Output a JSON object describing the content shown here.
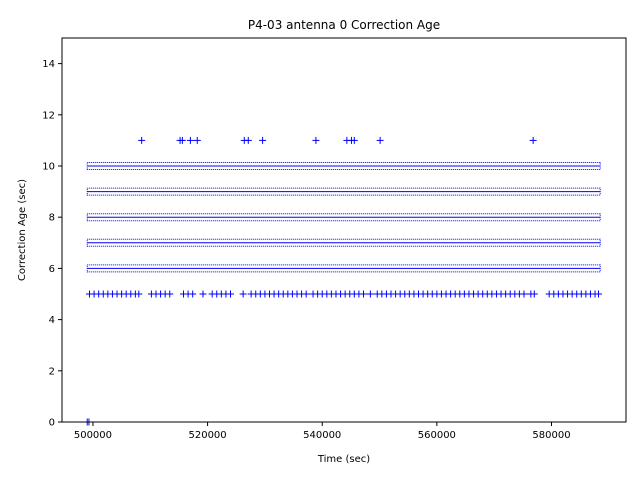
{
  "chart_data": {
    "type": "scatter",
    "title": "P4-03 antenna 0 Correction Age",
    "xlabel": "Time (sec)",
    "ylabel": "Correction Age (sec)",
    "xlim": [
      494600,
      593000
    ],
    "ylim": [
      0,
      15
    ],
    "xticks": [
      500000,
      520000,
      540000,
      560000,
      580000
    ],
    "xtick_labels": [
      "500000",
      "520000",
      "540000",
      "560000",
      "580000"
    ],
    "yticks": [
      0,
      2,
      4,
      6,
      8,
      10,
      12,
      14
    ],
    "ytick_labels": [
      "0",
      "2",
      "4",
      "6",
      "8",
      "10",
      "12",
      "14"
    ],
    "grid": false,
    "marker": "+",
    "color": "#0000ff",
    "bands": [
      {
        "y": 6,
        "x_range": [
          499000,
          588500
        ]
      },
      {
        "y": 7,
        "x_range": [
          499000,
          588500
        ]
      },
      {
        "y": 8,
        "x_range": [
          499000,
          588500
        ]
      },
      {
        "y": 9,
        "x_range": [
          499000,
          588500
        ]
      },
      {
        "y": 10,
        "x_range": [
          499000,
          588500
        ]
      }
    ],
    "series": [
      {
        "values": [
          {
            "x": 499000,
            "y": 0
          },
          {
            "x": 499300,
            "y": 0
          },
          {
            "x": 508500,
            "y": 11
          },
          {
            "x": 515200,
            "y": 11
          },
          {
            "x": 515600,
            "y": 11
          },
          {
            "x": 517000,
            "y": 11
          },
          {
            "x": 518200,
            "y": 11
          },
          {
            "x": 526400,
            "y": 11
          },
          {
            "x": 527100,
            "y": 11
          },
          {
            "x": 529600,
            "y": 11
          },
          {
            "x": 538900,
            "y": 11
          },
          {
            "x": 544300,
            "y": 11
          },
          {
            "x": 545100,
            "y": 11
          },
          {
            "x": 545600,
            "y": 11
          },
          {
            "x": 550100,
            "y": 11
          },
          {
            "x": 576800,
            "y": 11
          },
          {
            "x": 499400,
            "y": 5
          },
          {
            "x": 500200,
            "y": 5
          },
          {
            "x": 501000,
            "y": 5
          },
          {
            "x": 501800,
            "y": 5
          },
          {
            "x": 502600,
            "y": 5
          },
          {
            "x": 503400,
            "y": 5
          },
          {
            "x": 504200,
            "y": 5
          },
          {
            "x": 505000,
            "y": 5
          },
          {
            "x": 505800,
            "y": 5
          },
          {
            "x": 506600,
            "y": 5
          },
          {
            "x": 507400,
            "y": 5
          },
          {
            "x": 508000,
            "y": 5
          },
          {
            "x": 510200,
            "y": 5
          },
          {
            "x": 511000,
            "y": 5
          },
          {
            "x": 511800,
            "y": 5
          },
          {
            "x": 512600,
            "y": 5
          },
          {
            "x": 513400,
            "y": 5
          },
          {
            "x": 515800,
            "y": 5
          },
          {
            "x": 516600,
            "y": 5
          },
          {
            "x": 517400,
            "y": 5
          },
          {
            "x": 519200,
            "y": 5
          },
          {
            "x": 520800,
            "y": 5
          },
          {
            "x": 521600,
            "y": 5
          },
          {
            "x": 522400,
            "y": 5
          },
          {
            "x": 523200,
            "y": 5
          },
          {
            "x": 524000,
            "y": 5
          },
          {
            "x": 526200,
            "y": 5
          },
          {
            "x": 527600,
            "y": 5
          },
          {
            "x": 528400,
            "y": 5
          },
          {
            "x": 529200,
            "y": 5
          },
          {
            "x": 530000,
            "y": 5
          },
          {
            "x": 530800,
            "y": 5
          },
          {
            "x": 531600,
            "y": 5
          },
          {
            "x": 532400,
            "y": 5
          },
          {
            "x": 533200,
            "y": 5
          },
          {
            "x": 534000,
            "y": 5
          },
          {
            "x": 534800,
            "y": 5
          },
          {
            "x": 535600,
            "y": 5
          },
          {
            "x": 536400,
            "y": 5
          },
          {
            "x": 537200,
            "y": 5
          },
          {
            "x": 538400,
            "y": 5
          },
          {
            "x": 539200,
            "y": 5
          },
          {
            "x": 540000,
            "y": 5
          },
          {
            "x": 540800,
            "y": 5
          },
          {
            "x": 541600,
            "y": 5
          },
          {
            "x": 542400,
            "y": 5
          },
          {
            "x": 543200,
            "y": 5
          },
          {
            "x": 544000,
            "y": 5
          },
          {
            "x": 544800,
            "y": 5
          },
          {
            "x": 545600,
            "y": 5
          },
          {
            "x": 546400,
            "y": 5
          },
          {
            "x": 547200,
            "y": 5
          },
          {
            "x": 548400,
            "y": 5
          },
          {
            "x": 549600,
            "y": 5
          },
          {
            "x": 550400,
            "y": 5
          },
          {
            "x": 551200,
            "y": 5
          },
          {
            "x": 552000,
            "y": 5
          },
          {
            "x": 552800,
            "y": 5
          },
          {
            "x": 553600,
            "y": 5
          },
          {
            "x": 554400,
            "y": 5
          },
          {
            "x": 555200,
            "y": 5
          },
          {
            "x": 556000,
            "y": 5
          },
          {
            "x": 556800,
            "y": 5
          },
          {
            "x": 557600,
            "y": 5
          },
          {
            "x": 558400,
            "y": 5
          },
          {
            "x": 559200,
            "y": 5
          },
          {
            "x": 560000,
            "y": 5
          },
          {
            "x": 560800,
            "y": 5
          },
          {
            "x": 561600,
            "y": 5
          },
          {
            "x": 562400,
            "y": 5
          },
          {
            "x": 563200,
            "y": 5
          },
          {
            "x": 564000,
            "y": 5
          },
          {
            "x": 564800,
            "y": 5
          },
          {
            "x": 565600,
            "y": 5
          },
          {
            "x": 566400,
            "y": 5
          },
          {
            "x": 567200,
            "y": 5
          },
          {
            "x": 568000,
            "y": 5
          },
          {
            "x": 568800,
            "y": 5
          },
          {
            "x": 569600,
            "y": 5
          },
          {
            "x": 570400,
            "y": 5
          },
          {
            "x": 571200,
            "y": 5
          },
          {
            "x": 572000,
            "y": 5
          },
          {
            "x": 572800,
            "y": 5
          },
          {
            "x": 573600,
            "y": 5
          },
          {
            "x": 574400,
            "y": 5
          },
          {
            "x": 575200,
            "y": 5
          },
          {
            "x": 576400,
            "y": 5
          },
          {
            "x": 577000,
            "y": 5
          },
          {
            "x": 579600,
            "y": 5
          },
          {
            "x": 580400,
            "y": 5
          },
          {
            "x": 581200,
            "y": 5
          },
          {
            "x": 582000,
            "y": 5
          },
          {
            "x": 582800,
            "y": 5
          },
          {
            "x": 583600,
            "y": 5
          },
          {
            "x": 584400,
            "y": 5
          },
          {
            "x": 585200,
            "y": 5
          },
          {
            "x": 586000,
            "y": 5
          },
          {
            "x": 586800,
            "y": 5
          },
          {
            "x": 587600,
            "y": 5
          },
          {
            "x": 588200,
            "y": 5
          }
        ]
      }
    ]
  }
}
